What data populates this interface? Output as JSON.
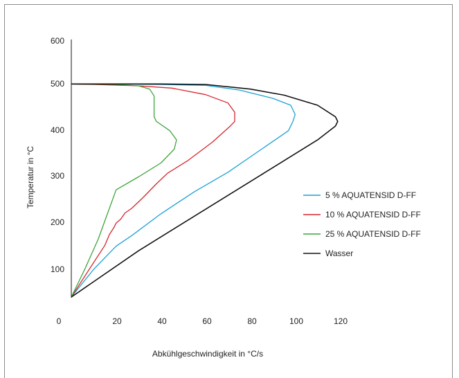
{
  "chart_data": {
    "type": "line",
    "title": "",
    "xlabel": "Abkühlgeschwindigkeit in °C/s",
    "ylabel": "Temperatur in °C",
    "xlim": [
      0,
      120
    ],
    "ylim": [
      0,
      600
    ],
    "x_ticks": [
      "0",
      "20",
      "40",
      "60",
      "80",
      "100",
      "120"
    ],
    "y_ticks": [
      "100",
      "200",
      "300",
      "400",
      "500",
      "600"
    ],
    "grid": false,
    "legend_position": "right",
    "series": [
      {
        "name": "5 % AQUATENSID D-FF",
        "color": "#1ba1d6",
        "points": [
          [
            0,
            40
          ],
          [
            10,
            100
          ],
          [
            20,
            150
          ],
          [
            27,
            173
          ],
          [
            40,
            220
          ],
          [
            55,
            268
          ],
          [
            70,
            310
          ],
          [
            85,
            360
          ],
          [
            97,
            400
          ],
          [
            99,
            420
          ],
          [
            100,
            435
          ],
          [
            98,
            455
          ],
          [
            90,
            470
          ],
          [
            75,
            488
          ],
          [
            60,
            498
          ],
          [
            40,
            500
          ],
          [
            20,
            501
          ],
          [
            0,
            501
          ]
        ]
      },
      {
        "name": "10 % AQUATENSID D-FF",
        "color": "#d8242c",
        "points": [
          [
            0,
            40
          ],
          [
            8,
            100
          ],
          [
            15,
            152
          ],
          [
            17,
            175
          ],
          [
            19,
            190
          ],
          [
            20,
            200
          ],
          [
            22,
            208
          ],
          [
            24,
            222
          ],
          [
            27,
            232
          ],
          [
            32,
            255
          ],
          [
            38,
            285
          ],
          [
            43,
            308
          ],
          [
            52,
            335
          ],
          [
            63,
            375
          ],
          [
            71,
            410
          ],
          [
            73,
            420
          ],
          [
            73,
            440
          ],
          [
            70,
            460
          ],
          [
            60,
            478
          ],
          [
            45,
            492
          ],
          [
            30,
            497
          ],
          [
            10,
            500
          ],
          [
            0,
            501
          ]
        ]
      },
      {
        "name": "25 % AQUATENSID D-FF",
        "color": "#3ca43a",
        "points": [
          [
            0,
            40
          ],
          [
            6,
            100
          ],
          [
            12,
            165
          ],
          [
            15,
            205
          ],
          [
            18,
            245
          ],
          [
            20,
            272
          ],
          [
            30,
            300
          ],
          [
            40,
            330
          ],
          [
            46,
            360
          ],
          [
            47,
            380
          ],
          [
            44,
            400
          ],
          [
            38,
            420
          ],
          [
            37,
            430
          ],
          [
            37,
            475
          ],
          [
            35,
            490
          ],
          [
            30,
            497
          ],
          [
            20,
            500
          ],
          [
            0,
            501
          ]
        ]
      },
      {
        "name": "Wasser",
        "color": "#111111",
        "points": [
          [
            0,
            40
          ],
          [
            30,
            140
          ],
          [
            60,
            230
          ],
          [
            90,
            320
          ],
          [
            110,
            380
          ],
          [
            118,
            410
          ],
          [
            119,
            420
          ],
          [
            118,
            430
          ],
          [
            110,
            455
          ],
          [
            95,
            477
          ],
          [
            80,
            490
          ],
          [
            60,
            500
          ],
          [
            40,
            501
          ],
          [
            0,
            501
          ]
        ]
      }
    ]
  }
}
